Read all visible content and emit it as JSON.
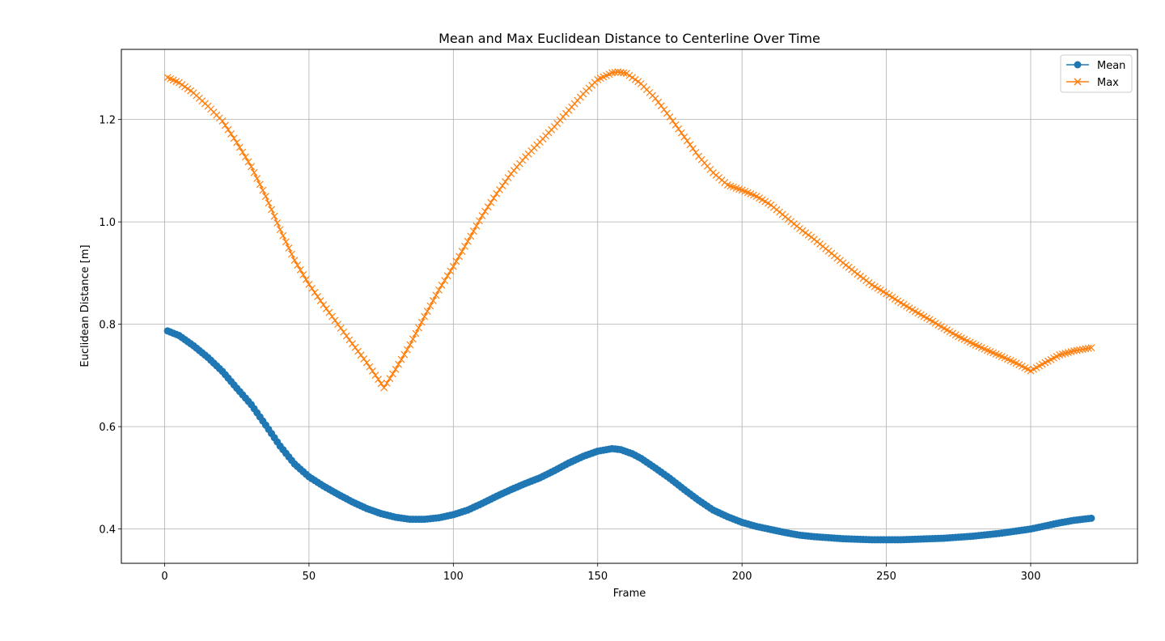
{
  "chart_data": {
    "type": "line",
    "title": "Mean and Max Euclidean Distance to Centerline Over Time",
    "xlabel": "Frame",
    "ylabel": "Euclidean Distance [m]",
    "xlim": [
      -15,
      337
    ],
    "ylim": [
      0.333,
      1.337
    ],
    "xticks": [
      0,
      50,
      100,
      150,
      200,
      250,
      300
    ],
    "yticks": [
      0.4,
      0.6,
      0.8,
      1.0,
      1.2
    ],
    "ytick_labels": [
      "0.4",
      "0.6",
      "0.8",
      "1.0",
      "1.2"
    ],
    "grid": true,
    "legend_position": "top-right",
    "series": [
      {
        "name": "Mean",
        "color": "#1f77b4",
        "marker": "circle",
        "keypoints": [
          [
            1,
            0.787
          ],
          [
            5,
            0.778
          ],
          [
            10,
            0.758
          ],
          [
            15,
            0.735
          ],
          [
            20,
            0.708
          ],
          [
            25,
            0.675
          ],
          [
            30,
            0.643
          ],
          [
            35,
            0.603
          ],
          [
            40,
            0.562
          ],
          [
            45,
            0.527
          ],
          [
            50,
            0.502
          ],
          [
            55,
            0.484
          ],
          [
            60,
            0.468
          ],
          [
            65,
            0.453
          ],
          [
            70,
            0.44
          ],
          [
            75,
            0.43
          ],
          [
            80,
            0.423
          ],
          [
            85,
            0.419
          ],
          [
            90,
            0.419
          ],
          [
            95,
            0.422
          ],
          [
            100,
            0.428
          ],
          [
            105,
            0.437
          ],
          [
            110,
            0.45
          ],
          [
            115,
            0.464
          ],
          [
            120,
            0.477
          ],
          [
            125,
            0.489
          ],
          [
            130,
            0.5
          ],
          [
            135,
            0.514
          ],
          [
            140,
            0.529
          ],
          [
            145,
            0.542
          ],
          [
            150,
            0.552
          ],
          [
            155,
            0.557
          ],
          [
            158,
            0.555
          ],
          [
            162,
            0.547
          ],
          [
            165,
            0.538
          ],
          [
            170,
            0.519
          ],
          [
            175,
            0.499
          ],
          [
            180,
            0.477
          ],
          [
            185,
            0.456
          ],
          [
            190,
            0.437
          ],
          [
            195,
            0.424
          ],
          [
            200,
            0.413
          ],
          [
            205,
            0.405
          ],
          [
            210,
            0.399
          ],
          [
            215,
            0.393
          ],
          [
            220,
            0.388
          ],
          [
            225,
            0.385
          ],
          [
            230,
            0.383
          ],
          [
            235,
            0.381
          ],
          [
            240,
            0.38
          ],
          [
            245,
            0.379
          ],
          [
            250,
            0.379
          ],
          [
            255,
            0.379
          ],
          [
            260,
            0.38
          ],
          [
            265,
            0.381
          ],
          [
            270,
            0.382
          ],
          [
            275,
            0.384
          ],
          [
            280,
            0.386
          ],
          [
            285,
            0.389
          ],
          [
            290,
            0.392
          ],
          [
            295,
            0.396
          ],
          [
            300,
            0.4
          ],
          [
            305,
            0.406
          ],
          [
            310,
            0.412
          ],
          [
            315,
            0.417
          ],
          [
            321,
            0.421
          ]
        ]
      },
      {
        "name": "Max",
        "color": "#ff7f0e",
        "marker": "x",
        "keypoints": [
          [
            1,
            1.282
          ],
          [
            5,
            1.272
          ],
          [
            10,
            1.252
          ],
          [
            15,
            1.226
          ],
          [
            20,
            1.197
          ],
          [
            25,
            1.155
          ],
          [
            30,
            1.108
          ],
          [
            35,
            1.05
          ],
          [
            40,
            0.985
          ],
          [
            45,
            0.925
          ],
          [
            50,
            0.878
          ],
          [
            55,
            0.838
          ],
          [
            60,
            0.8
          ],
          [
            65,
            0.762
          ],
          [
            70,
            0.725
          ],
          [
            76,
            0.676
          ],
          [
            80,
            0.712
          ],
          [
            85,
            0.76
          ],
          [
            90,
            0.815
          ],
          [
            95,
            0.867
          ],
          [
            100,
            0.913
          ],
          [
            105,
            0.962
          ],
          [
            110,
            1.012
          ],
          [
            115,
            1.055
          ],
          [
            120,
            1.094
          ],
          [
            125,
            1.127
          ],
          [
            130,
            1.156
          ],
          [
            135,
            1.186
          ],
          [
            140,
            1.218
          ],
          [
            145,
            1.25
          ],
          [
            150,
            1.278
          ],
          [
            155,
            1.291
          ],
          [
            157,
            1.293
          ],
          [
            160,
            1.29
          ],
          [
            165,
            1.27
          ],
          [
            170,
            1.241
          ],
          [
            175,
            1.205
          ],
          [
            180,
            1.166
          ],
          [
            185,
            1.128
          ],
          [
            190,
            1.096
          ],
          [
            195,
            1.072
          ],
          [
            200,
            1.062
          ],
          [
            205,
            1.05
          ],
          [
            210,
            1.033
          ],
          [
            215,
            1.01
          ],
          [
            220,
            0.987
          ],
          [
            225,
            0.966
          ],
          [
            230,
            0.943
          ],
          [
            235,
            0.92
          ],
          [
            240,
            0.898
          ],
          [
            245,
            0.877
          ],
          [
            250,
            0.86
          ],
          [
            255,
            0.842
          ],
          [
            260,
            0.825
          ],
          [
            265,
            0.809
          ],
          [
            270,
            0.792
          ],
          [
            275,
            0.776
          ],
          [
            280,
            0.762
          ],
          [
            285,
            0.749
          ],
          [
            290,
            0.737
          ],
          [
            295,
            0.724
          ],
          [
            300,
            0.709
          ],
          [
            305,
            0.725
          ],
          [
            310,
            0.74
          ],
          [
            315,
            0.748
          ],
          [
            321,
            0.754
          ]
        ]
      }
    ]
  }
}
